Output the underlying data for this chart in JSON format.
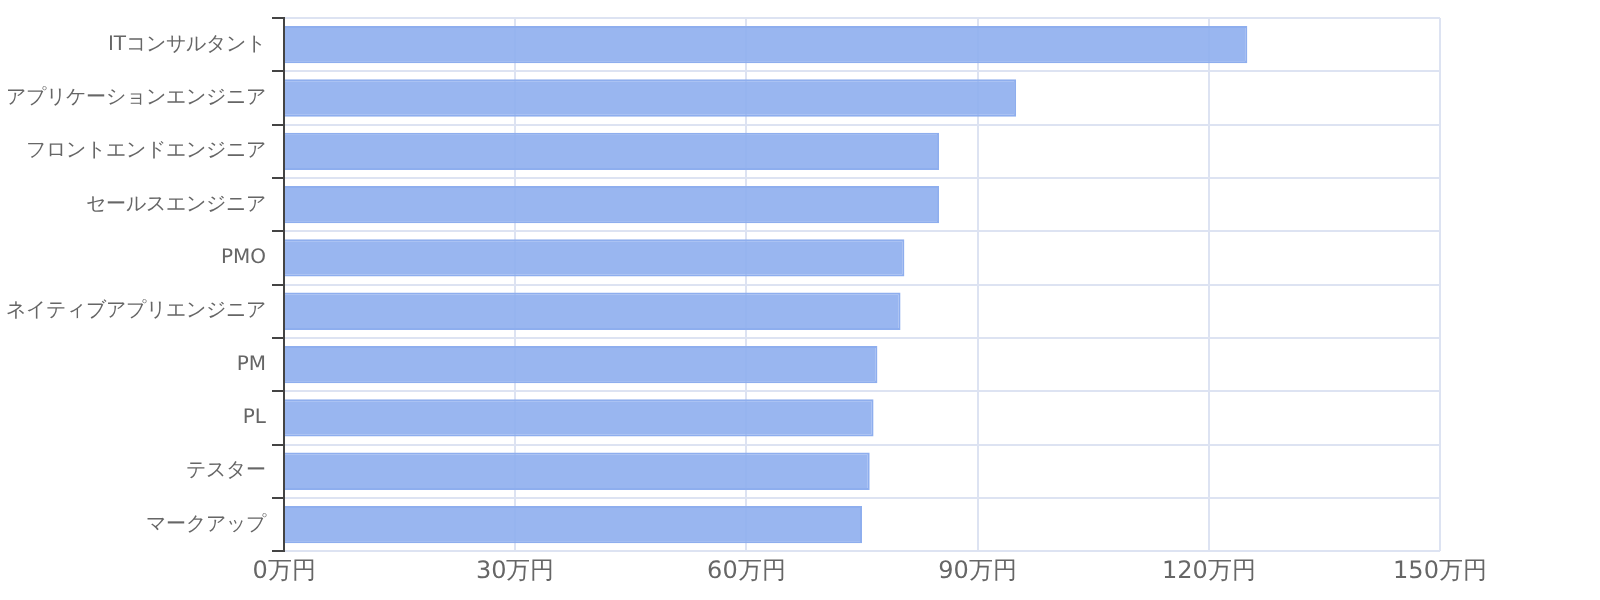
{
  "chart_data": {
    "type": "bar",
    "orientation": "horizontal",
    "categories": [
      "ITコンサルタント",
      "アプリケーションエンジニア",
      "フロントエンドエンジニア",
      "セールスエンジニア",
      "PMO",
      "ネイティブアプリエンジニア",
      "PM",
      "PL",
      "テスター",
      "マークアップ"
    ],
    "values": [
      125,
      95,
      85,
      85,
      80.5,
      80,
      77,
      76.5,
      76,
      75
    ],
    "color": "#8eaeee",
    "xlim": [
      0,
      150
    ],
    "xticks": [
      {
        "value": 0,
        "label": "0万円"
      },
      {
        "value": 30,
        "label": "30万円"
      },
      {
        "value": 60,
        "label": "60万円"
      },
      {
        "value": 90,
        "label": "90万円"
      },
      {
        "value": 120,
        "label": "120万円"
      },
      {
        "value": 150,
        "label": "150万円"
      }
    ],
    "grid": true
  }
}
